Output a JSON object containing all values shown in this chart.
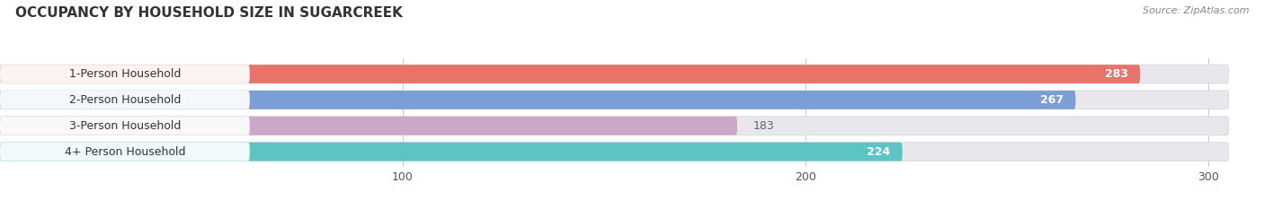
{
  "title": "OCCUPANCY BY HOUSEHOLD SIZE IN SUGARCREEK",
  "source": "Source: ZipAtlas.com",
  "categories": [
    "1-Person Household",
    "2-Person Household",
    "3-Person Household",
    "4+ Person Household"
  ],
  "values": [
    283,
    267,
    183,
    224
  ],
  "bar_colors": [
    "#E8736A",
    "#7B9ED9",
    "#C9A8C8",
    "#5DC4C4"
  ],
  "bar_bg_color": "#E8E8EC",
  "label_bg_color": "#FFFFFF",
  "xlim_data": [
    0,
    310
  ],
  "x_max_bg": 305,
  "xticks": [
    100,
    200,
    300
  ],
  "label_colors": [
    "white",
    "white",
    "#666666",
    "white"
  ],
  "figsize": [
    14.06,
    2.33
  ],
  "dpi": 100,
  "bar_height": 0.72,
  "title_fontsize": 11,
  "source_fontsize": 8,
  "label_fontsize": 9,
  "value_fontsize": 9
}
